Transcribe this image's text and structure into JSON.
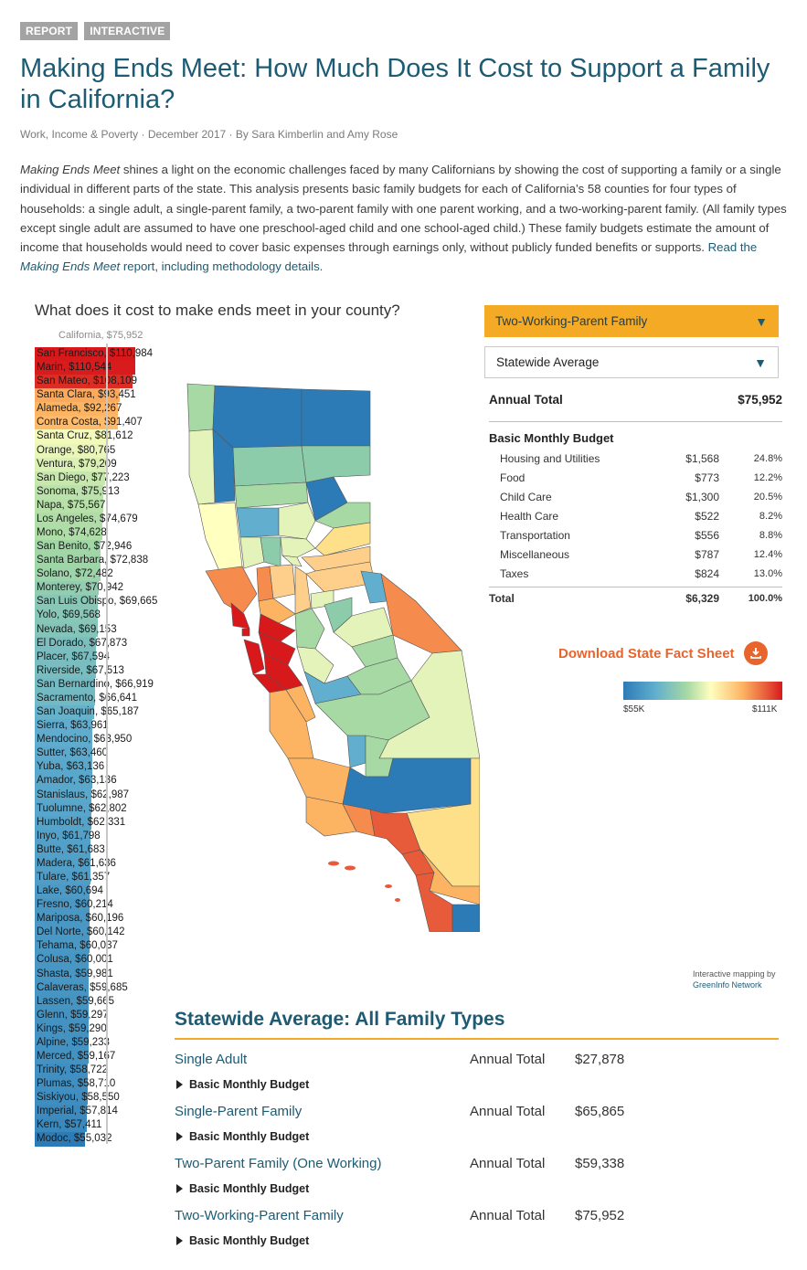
{
  "tags": [
    "REPORT",
    "INTERACTIVE"
  ],
  "title": "Making Ends Meet: How Much Does It Cost to Support a Family in California?",
  "byline": "Work, Income & Poverty · December 2017 · By Sara Kimberlin and Amy Rose",
  "intro": {
    "lead_italic": "Making Ends Meet",
    "body": " shines a light on the economic challenges faced by many Californians by showing the cost of supporting a family or a single individual in different parts of the state. This analysis presents basic family budgets for each of California’s 58 counties for four types of households: a single adult, a single-parent family, a two-parent family with one parent working, and a two-working-parent family. (All family types except single adult are assumed to have one preschool-aged child and one school-aged child.) These family budgets estimate the amount of income that households would need to cover basic expenses through earnings only, without publicly funded benefits or supports. ",
    "link_pre": "Read the ",
    "link_italic": "Making Ends Meet",
    "link_post": " report, including methodology details."
  },
  "chart": {
    "title": "What does it cost to make ends meet in your county?",
    "california_label": "California, $75,952"
  },
  "chart_data": {
    "type": "bar",
    "orientation": "horizontal",
    "title": "What does it cost to make ends meet in your county?",
    "reference": {
      "name": "California",
      "value": 75952
    },
    "counties": [
      {
        "name": "San Francisco",
        "label": "San Francisco, $110,984",
        "value": 110984
      },
      {
        "name": "Marin",
        "label": "Marin, $110,544",
        "value": 110544
      },
      {
        "name": "San Mateo",
        "label": "San Mateo, $108,109",
        "value": 108109
      },
      {
        "name": "Santa Clara",
        "label": "Santa Clara, $93,451",
        "value": 93451
      },
      {
        "name": "Alameda",
        "label": "Alameda, $92,267",
        "value": 92267
      },
      {
        "name": "Contra Costa",
        "label": "Contra Costa, $91,407",
        "value": 91407
      },
      {
        "name": "Santa Cruz",
        "label": "Santa Cruz, $81,612",
        "value": 81612
      },
      {
        "name": "Orange",
        "label": "Orange, $80,765",
        "value": 80765
      },
      {
        "name": "Ventura",
        "label": "Ventura, $79,209",
        "value": 79209
      },
      {
        "name": "San Diego",
        "label": "San Diego, $77,223",
        "value": 77223
      },
      {
        "name": "Sonoma",
        "label": "Sonoma, $75,913",
        "value": 75913
      },
      {
        "name": "Napa",
        "label": "Napa, $75,567",
        "value": 75567
      },
      {
        "name": "Los Angeles",
        "label": "Los Angeles, $74,679",
        "value": 74679
      },
      {
        "name": "Mono",
        "label": "Mono, $74,628",
        "value": 74628
      },
      {
        "name": "San Benito",
        "label": "San Benito, $72,946",
        "value": 72946
      },
      {
        "name": "Santa Barbara",
        "label": "Santa Barbara, $72,838",
        "value": 72838
      },
      {
        "name": "Solano",
        "label": "Solano, $72,482",
        "value": 72482
      },
      {
        "name": "Monterey",
        "label": "Monterey, $70,942",
        "value": 70942
      },
      {
        "name": "San Luis Obispo",
        "label": "San Luis Obispo, $69,665",
        "value": 69665
      },
      {
        "name": "Yolo",
        "label": "Yolo, $69,568",
        "value": 69568
      },
      {
        "name": "Nevada",
        "label": "Nevada, $69,153",
        "value": 69153
      },
      {
        "name": "El Dorado",
        "label": "El Dorado, $67,873",
        "value": 67873
      },
      {
        "name": "Placer",
        "label": "Placer, $67,594",
        "value": 67594
      },
      {
        "name": "Riverside",
        "label": "Riverside, $67,513",
        "value": 67513
      },
      {
        "name": "San Bernardino",
        "label": "San Bernardino, $66,919",
        "value": 66919
      },
      {
        "name": "Sacramento",
        "label": "Sacramento, $66,641",
        "value": 66641
      },
      {
        "name": "San Joaquin",
        "label": "San Joaquin, $65,187",
        "value": 65187
      },
      {
        "name": "Sierra",
        "label": "Sierra, $63,961",
        "value": 63961
      },
      {
        "name": "Mendocino",
        "label": "Mendocino, $63,950",
        "value": 63950
      },
      {
        "name": "Sutter",
        "label": "Sutter, $63,460",
        "value": 63460
      },
      {
        "name": "Yuba",
        "label": "Yuba, $63,136",
        "value": 63136
      },
      {
        "name": "Amador",
        "label": "Amador, $63,136",
        "value": 63136
      },
      {
        "name": "Stanislaus",
        "label": "Stanislaus, $62,987",
        "value": 62987
      },
      {
        "name": "Tuolumne",
        "label": "Tuolumne, $62,802",
        "value": 62802
      },
      {
        "name": "Humboldt",
        "label": "Humboldt, $62,331",
        "value": 62331
      },
      {
        "name": "Inyo",
        "label": "Inyo, $61,798",
        "value": 61798
      },
      {
        "name": "Butte",
        "label": "Butte, $61,683",
        "value": 61683
      },
      {
        "name": "Madera",
        "label": "Madera, $61,636",
        "value": 61636
      },
      {
        "name": "Tulare",
        "label": "Tulare, $61,357",
        "value": 61357
      },
      {
        "name": "Lake",
        "label": "Lake, $60,694",
        "value": 60694
      },
      {
        "name": "Fresno",
        "label": "Fresno, $60,214",
        "value": 60214
      },
      {
        "name": "Mariposa",
        "label": "Mariposa, $60,196",
        "value": 60196
      },
      {
        "name": "Del Norte",
        "label": "Del Norte, $60,142",
        "value": 60142
      },
      {
        "name": "Tehama",
        "label": "Tehama, $60,037",
        "value": 60037
      },
      {
        "name": "Colusa",
        "label": "Colusa, $60,001",
        "value": 60001
      },
      {
        "name": "Shasta",
        "label": "Shasta, $59,981",
        "value": 59981
      },
      {
        "name": "Calaveras",
        "label": "Calaveras, $59,685",
        "value": 59685
      },
      {
        "name": "Lassen",
        "label": "Lassen, $59,665",
        "value": 59665
      },
      {
        "name": "Glenn",
        "label": "Glenn, $59,297",
        "value": 59297
      },
      {
        "name": "Kings",
        "label": "Kings, $59,290",
        "value": 59290
      },
      {
        "name": "Alpine",
        "label": "Alpine, $59,233",
        "value": 59233
      },
      {
        "name": "Merced",
        "label": "Merced, $59,167",
        "value": 59167
      },
      {
        "name": "Trinity",
        "label": "Trinity, $58,722",
        "value": 58722
      },
      {
        "name": "Plumas",
        "label": "Plumas, $58,710",
        "value": 58710
      },
      {
        "name": "Siskiyou",
        "label": "Siskiyou, $58,550",
        "value": 58550
      },
      {
        "name": "Imperial",
        "label": "Imperial, $57,814",
        "value": 57814
      },
      {
        "name": "Kern",
        "label": "Kern, $57,411",
        "value": 57411
      },
      {
        "name": "Modoc",
        "label": "Modoc, $55,032",
        "value": 55032
      }
    ],
    "color_scale": {
      "min_label": "$55K",
      "max_label": "$111K",
      "min": 55000,
      "max": 111000,
      "colors": [
        "#2c7bb6",
        "#61aecf",
        "#a6d9a4",
        "#ffffbf",
        "#fdb462",
        "#e85b3a",
        "#d7191c"
      ]
    }
  },
  "dropdowns": {
    "family": "Two-Working-Parent Family",
    "region": "Statewide Average"
  },
  "summary": {
    "annual_label": "Annual Total",
    "annual_value": "$75,952",
    "bmb_title": "Basic Monthly Budget",
    "items": [
      {
        "name": "Housing and Utilities",
        "amount": "$1,568",
        "pct": "24.8%"
      },
      {
        "name": "Food",
        "amount": "$773",
        "pct": "12.2%"
      },
      {
        "name": "Child Care",
        "amount": "$1,300",
        "pct": "20.5%"
      },
      {
        "name": "Health Care",
        "amount": "$522",
        "pct": "8.2%"
      },
      {
        "name": "Transportation",
        "amount": "$556",
        "pct": "8.8%"
      },
      {
        "name": "Miscellaneous",
        "amount": "$787",
        "pct": "12.4%"
      },
      {
        "name": "Taxes",
        "amount": "$824",
        "pct": "13.0%"
      }
    ],
    "total": {
      "name": "Total",
      "amount": "$6,329",
      "pct": "100.0%"
    }
  },
  "download_label": "Download State Fact Sheet",
  "legend": {
    "min": "$55K",
    "max": "$111K"
  },
  "credit": {
    "line1": "Interactive mapping by",
    "line2": "GreenInfo Network"
  },
  "all_family": {
    "title": "Statewide Average: All Family Types",
    "annual_label": "Annual Total",
    "bmb_label": "Basic Monthly Budget",
    "families": [
      {
        "name": "Single Adult",
        "annual": "$27,878"
      },
      {
        "name": "Single-Parent Family",
        "annual": "$65,865"
      },
      {
        "name": "Two-Parent Family (One Working)",
        "annual": "$59,338"
      },
      {
        "name": "Two-Working-Parent Family",
        "annual": "$75,952"
      }
    ]
  },
  "icons": {
    "dropdown": "chevron-down-icon",
    "download": "download-icon",
    "expand": "triangle-right-icon"
  }
}
